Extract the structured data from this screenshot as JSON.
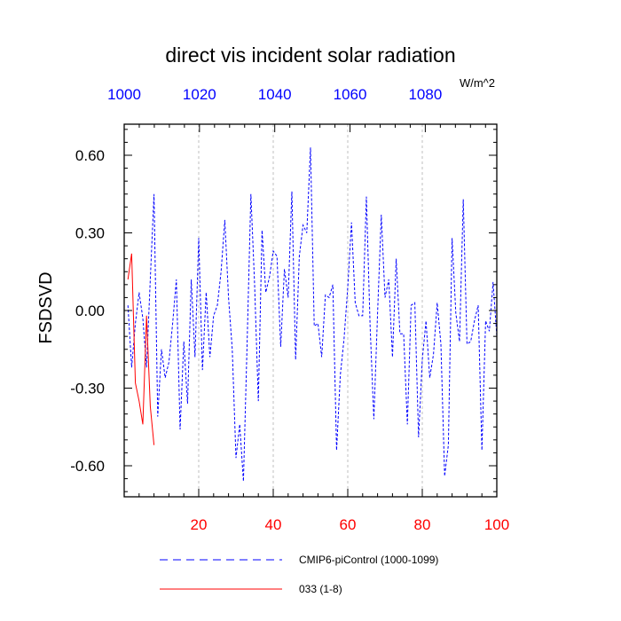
{
  "chart_data": {
    "type": "line",
    "title": "direct vis incident solar radiation",
    "ylabel": "FSDSVD",
    "units_label": "W/m^2",
    "ylim": [
      -0.72,
      0.72
    ],
    "yticks": [
      0.6,
      0.3,
      0.0,
      -0.3,
      -0.6
    ],
    "ytick_labels": [
      "0.60",
      "0.30",
      "0.00",
      "-0.30",
      "-0.60"
    ],
    "xlim_bottom": [
      0,
      100
    ],
    "xticks_bottom": [
      20,
      40,
      60,
      80,
      100
    ],
    "xtick_labels_bottom": [
      "20",
      "40",
      "60",
      "80",
      "100"
    ],
    "xlim_top": [
      1000,
      1099
    ],
    "xticks_top": [
      1000,
      1020,
      1040,
      1060,
      1080
    ],
    "xtick_labels_top": [
      "1000",
      "1020",
      "1040",
      "1060",
      "1080"
    ],
    "colors": {
      "bottom_axis": "#ff0000",
      "top_axis": "#0000ff",
      "series_blue": "#0000ff",
      "series_red": "#ff0000",
      "grid": "#b0b0b0"
    },
    "series": [
      {
        "name": "CMIP6-piControl (1000-1099)",
        "style": "dashed",
        "color": "#0000ff",
        "x": [
          1,
          2,
          3,
          4,
          5,
          6,
          7,
          8,
          9,
          10,
          11,
          12,
          13,
          14,
          15,
          16,
          17,
          18,
          19,
          20,
          21,
          22,
          23,
          24,
          25,
          26,
          27,
          28,
          29,
          30,
          31,
          32,
          33,
          34,
          35,
          36,
          37,
          38,
          39,
          40,
          41,
          42,
          43,
          44,
          45,
          46,
          47,
          48,
          49,
          50,
          51,
          52,
          53,
          54,
          55,
          56,
          57,
          58,
          59,
          60,
          61,
          62,
          63,
          64,
          65,
          66,
          67,
          68,
          69,
          70,
          71,
          72,
          73,
          74,
          75,
          76,
          77,
          78,
          79,
          80,
          81,
          82,
          83,
          84,
          85,
          86,
          87,
          88,
          89,
          90,
          91,
          92,
          93,
          94,
          95,
          96,
          97,
          98,
          99,
          100
        ],
        "values": [
          0.02,
          -0.22,
          -0.05,
          0.07,
          -0.03,
          -0.22,
          0.12,
          0.45,
          -0.41,
          -0.15,
          -0.26,
          -0.2,
          -0.05,
          0.12,
          -0.46,
          -0.12,
          -0.36,
          0.12,
          -0.18,
          0.28,
          -0.23,
          0.07,
          -0.18,
          -0.02,
          0.02,
          0.15,
          0.35,
          0.05,
          -0.15,
          -0.57,
          -0.44,
          -0.66,
          -0.12,
          0.45,
          0.1,
          -0.35,
          0.31,
          0.07,
          0.13,
          0.23,
          0.21,
          -0.14,
          0.16,
          0.05,
          0.46,
          -0.19,
          0.21,
          0.33,
          0.3,
          0.63,
          -0.06,
          -0.05,
          -0.18,
          0.06,
          0.05,
          0.1,
          -0.54,
          -0.25,
          -0.11,
          0.09,
          0.34,
          0.03,
          -0.02,
          -0.02,
          0.44,
          -0.06,
          -0.42,
          -0.01,
          0.37,
          0.05,
          0.12,
          -0.18,
          0.2,
          -0.09,
          -0.09,
          -0.44,
          0.02,
          0.03,
          -0.49,
          -0.19,
          -0.04,
          -0.26,
          -0.17,
          0.03,
          -0.13,
          -0.64,
          -0.52,
          0.28,
          -0.01,
          -0.12,
          0.43,
          -0.13,
          -0.12,
          -0.04,
          0.02,
          -0.54,
          -0.04,
          -0.08,
          0.11,
          -0.1
        ]
      },
      {
        "name": "033 (1-8)",
        "style": "solid",
        "color": "#ff0000",
        "x": [
          1,
          2,
          3,
          4,
          5,
          6,
          7,
          8
        ],
        "values": [
          0.12,
          0.22,
          -0.28,
          -0.35,
          -0.44,
          -0.02,
          -0.37,
          -0.52
        ]
      }
    ],
    "legend": {
      "placement": "bottom",
      "entries": [
        "CMIP6-piControl (1000-1099)",
        "033 (1-8)"
      ]
    },
    "grid": "vertical dashed at x ticks"
  }
}
